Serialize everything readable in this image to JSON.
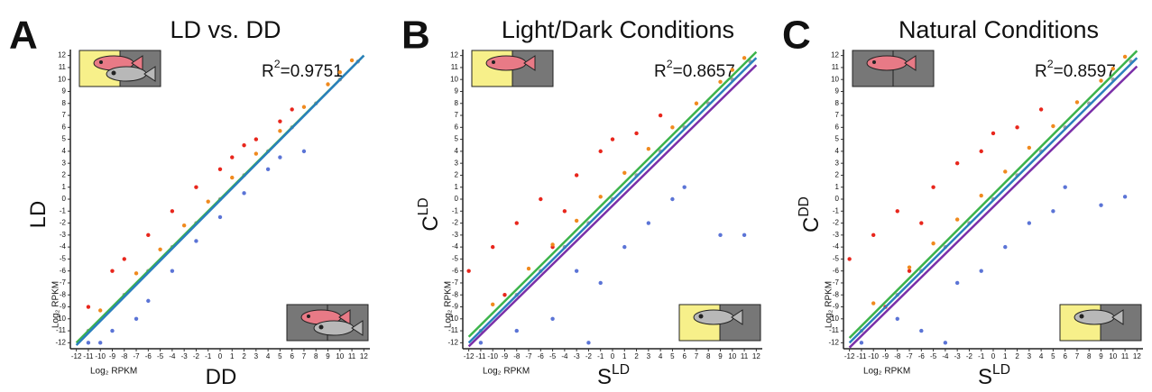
{
  "chart_data": [
    {
      "type": "scatter",
      "panel": "A",
      "title": "LD vs. DD",
      "annotation": {
        "base": "R",
        "sup": "2",
        "text": "=0.9751"
      },
      "x_label": {
        "base": "DD"
      },
      "y_label": {
        "base": "LD"
      },
      "x_unit": "Log₂ RPKM",
      "y_unit": "Log₂ RPKM",
      "xlim": [
        -12.5,
        12.5
      ],
      "ylim": [
        -12.5,
        12.5
      ],
      "xticks": [
        -12,
        -11,
        -10,
        -9,
        -8,
        -7,
        -6,
        -5,
        -4,
        -3,
        -2,
        -1,
        0,
        1,
        2,
        3,
        4,
        5,
        6,
        7,
        8,
        9,
        10,
        11,
        12
      ],
      "yticks": [
        -12,
        -11,
        -10,
        -9,
        -8,
        -7,
        -6,
        -5,
        -4,
        -3,
        -2,
        -1,
        0,
        1,
        2,
        3,
        4,
        5,
        6,
        7,
        8,
        9,
        10,
        11,
        12
      ],
      "series": [
        {
          "color": "#e8261c",
          "x": [
            -11,
            -9,
            -6,
            -4,
            -2,
            0,
            1,
            3,
            5,
            6,
            -8,
            2
          ],
          "values": [
            -9,
            -6,
            -3,
            -1,
            1,
            2.5,
            3.5,
            5,
            6.5,
            7.5,
            -5,
            4.5
          ]
        },
        {
          "color": "#f08a1e",
          "x": [
            -10,
            -7,
            -5,
            -3,
            -1,
            1,
            3,
            5,
            7,
            9,
            10,
            11
          ],
          "values": [
            -9.3,
            -6.2,
            -4.2,
            -2.2,
            -0.2,
            1.8,
            3.8,
            5.7,
            7.7,
            9.6,
            10.6,
            11.6
          ]
        },
        {
          "color": "#a0a0a0",
          "x": [
            -11,
            -8,
            -6,
            -4,
            -2,
            0,
            2,
            4,
            6,
            8,
            10,
            11.5
          ],
          "values": [
            -11,
            -8,
            -6,
            -4,
            -2,
            0,
            2,
            4,
            6,
            8,
            10,
            11.5
          ]
        },
        {
          "color": "#5b74d6",
          "x": [
            -9,
            -6,
            -4,
            -2,
            0,
            2,
            4,
            5,
            7,
            -11,
            -10,
            -7
          ],
          "values": [
            -11,
            -8.5,
            -6,
            -3.5,
            -1.5,
            0.5,
            2.5,
            3.5,
            4,
            -12,
            -12,
            -10
          ]
        }
      ],
      "fit_lines": [
        {
          "color": "#3cb44b",
          "x": [
            -12,
            12
          ],
          "values": [
            -12,
            12
          ]
        },
        {
          "color": "#2a7fbd",
          "x": [
            -12,
            12
          ],
          "values": [
            -12.2,
            12
          ]
        }
      ]
    },
    {
      "type": "scatter",
      "panel": "B",
      "title": "Light/Dark Conditions",
      "annotation": {
        "base": "R",
        "sup": "2",
        "text": "=0.8657"
      },
      "x_label": {
        "base": "S",
        "sup": "LD"
      },
      "y_label": {
        "base": "C",
        "sup": "LD"
      },
      "x_unit": "Log₂ RPKM",
      "y_unit": "Log₂ RPKM",
      "xlim": [
        -12.5,
        12.5
      ],
      "ylim": [
        -12.5,
        12.5
      ],
      "xticks": [
        -12,
        -11,
        -10,
        -9,
        -8,
        -7,
        -6,
        -5,
        -4,
        -3,
        -2,
        -1,
        0,
        1,
        2,
        3,
        4,
        5,
        6,
        7,
        8,
        9,
        10,
        11,
        12
      ],
      "yticks": [
        -12,
        -11,
        -10,
        -9,
        -8,
        -7,
        -6,
        -5,
        -4,
        -3,
        -2,
        -1,
        0,
        1,
        2,
        3,
        4,
        5,
        6,
        7,
        8,
        9,
        10,
        11,
        12
      ],
      "series": [
        {
          "color": "#e8261c",
          "x": [
            -12,
            -10,
            -8,
            -6,
            -5,
            -3,
            -1,
            0,
            2,
            4,
            -9,
            -4
          ],
          "values": [
            -6,
            -4,
            -2,
            0,
            -4,
            2,
            4,
            5,
            5.5,
            7,
            -8,
            -1
          ]
        },
        {
          "color": "#f08a1e",
          "x": [
            -10,
            -7,
            -5,
            -3,
            -1,
            1,
            3,
            5,
            7,
            9,
            10,
            11
          ],
          "values": [
            -8.8,
            -5.8,
            -3.8,
            -1.8,
            0.2,
            2.2,
            4.2,
            6,
            8,
            9.8,
            10.8,
            11.8
          ]
        },
        {
          "color": "#a0a0a0",
          "x": [
            -11,
            -8,
            -6,
            -4,
            -2,
            0,
            2,
            4,
            6,
            8,
            10,
            11.5
          ],
          "values": [
            -11,
            -8,
            -6,
            -4,
            -2,
            0,
            2,
            4,
            6,
            8,
            10,
            11.5
          ]
        },
        {
          "color": "#5b74d6",
          "x": [
            -8,
            -5,
            -3,
            -1,
            1,
            3,
            5,
            6,
            9,
            11,
            -11,
            -2
          ],
          "values": [
            -11,
            -10,
            -6,
            -7,
            -4,
            -2,
            0,
            1,
            -3,
            -3,
            -12,
            -12
          ]
        }
      ],
      "fit_lines": [
        {
          "color": "#3cb44b",
          "x": [
            -12,
            12
          ],
          "values": [
            -11.5,
            12.3
          ]
        },
        {
          "color": "#2a7fbd",
          "x": [
            -12,
            12
          ],
          "values": [
            -12,
            11.8
          ]
        },
        {
          "color": "#7a2fa8",
          "x": [
            -12,
            12
          ],
          "values": [
            -12.3,
            11.2
          ]
        }
      ]
    },
    {
      "type": "scatter",
      "panel": "C",
      "title": "Natural Conditions",
      "annotation": {
        "base": "R",
        "sup": "2",
        "text": "=0.8597"
      },
      "x_label": {
        "base": "S",
        "sup": "LD"
      },
      "y_label": {
        "base": "C",
        "sup": "DD"
      },
      "x_unit": "Log₂ RPKM",
      "y_unit": "Log₂ RPKM",
      "xlim": [
        -12.5,
        12.5
      ],
      "ylim": [
        -12.5,
        12.5
      ],
      "xticks": [
        -12,
        -11,
        -10,
        -9,
        -8,
        -7,
        -6,
        -5,
        -4,
        -3,
        -2,
        -1,
        0,
        1,
        2,
        3,
        4,
        5,
        6,
        7,
        8,
        9,
        10,
        11,
        12
      ],
      "yticks": [
        -12,
        -11,
        -10,
        -9,
        -8,
        -7,
        -6,
        -5,
        -4,
        -3,
        -2,
        -1,
        0,
        1,
        2,
        3,
        4,
        5,
        6,
        7,
        8,
        9,
        10,
        11,
        12
      ],
      "series": [
        {
          "color": "#e8261c",
          "x": [
            -12,
            -10,
            -8,
            -7,
            -5,
            -3,
            -1,
            0,
            2,
            4,
            -9,
            -6
          ],
          "values": [
            -5,
            -3,
            -1,
            -6,
            1,
            3,
            4,
            5.5,
            6,
            7.5,
            -9,
            -2
          ]
        },
        {
          "color": "#f08a1e",
          "x": [
            -10,
            -7,
            -5,
            -3,
            -1,
            1,
            3,
            5,
            7,
            9,
            10,
            11
          ],
          "values": [
            -8.7,
            -5.7,
            -3.7,
            -1.7,
            0.3,
            2.3,
            4.3,
            6.1,
            8.1,
            9.9,
            10.9,
            11.9
          ]
        },
        {
          "color": "#a0a0a0",
          "x": [
            -11,
            -8,
            -6,
            -4,
            -2,
            0,
            2,
            4,
            6,
            8,
            10,
            11.5
          ],
          "values": [
            -11,
            -8,
            -6,
            -4,
            -2,
            0,
            2,
            4,
            6,
            8,
            10,
            11.5
          ]
        },
        {
          "color": "#5b74d6",
          "x": [
            -8,
            -6,
            -3,
            -1,
            1,
            3,
            5,
            6,
            9,
            11,
            -11,
            -4
          ],
          "values": [
            -10,
            -11,
            -7,
            -6,
            -4,
            -2,
            -1,
            1,
            -0.5,
            0.2,
            -12,
            -12
          ]
        }
      ],
      "fit_lines": [
        {
          "color": "#3cb44b",
          "x": [
            -12,
            12
          ],
          "values": [
            -11.6,
            12.4
          ]
        },
        {
          "color": "#2a7fbd",
          "x": [
            -12,
            12
          ],
          "values": [
            -12,
            11.8
          ]
        },
        {
          "color": "#7a2fa8",
          "x": [
            -12,
            12
          ],
          "values": [
            -12.4,
            11.1
          ]
        }
      ]
    }
  ]
}
